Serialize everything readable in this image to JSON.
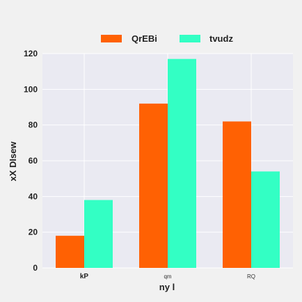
{
  "chart_data": {
    "type": "bar",
    "categories": [
      "kP",
      "qm",
      "RQ"
    ],
    "series": [
      {
        "name": "QrEBi",
        "values": [
          18,
          92,
          82
        ],
        "color": "#ff6103"
      },
      {
        "name": "tvudz",
        "values": [
          38,
          117,
          54
        ],
        "color": "#33ffc4"
      }
    ],
    "xlabel": "ny l",
    "ylabel": "xX DIsew",
    "ylim": [
      0,
      120
    ],
    "yticks": [
      0,
      20,
      40,
      60,
      80,
      100,
      120
    ],
    "grid": true,
    "legend_position": "top-center",
    "plot_background": "#eaeaf2",
    "grid_color": "#ffffff"
  }
}
